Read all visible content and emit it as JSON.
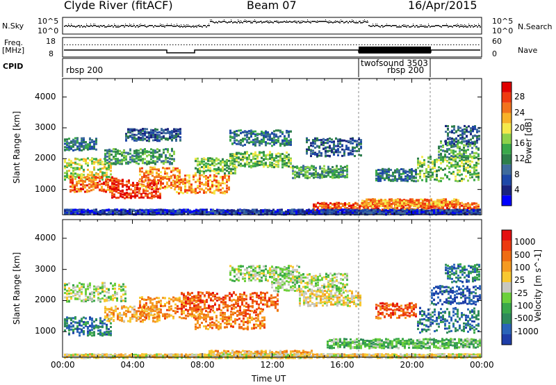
{
  "header": {
    "station": "Clyde River (fitACF)",
    "beam": "Beam 07",
    "date": "16/Apr/2015"
  },
  "panels": {
    "nsky_label": "N.Sky",
    "nsearch_label": "N.Search",
    "nsky_ticks": [
      "10^5",
      "10^0"
    ],
    "nsearch_ticks": [
      "10^5",
      "10^0"
    ],
    "freq_label_1": "Freq.",
    "freq_label_2": "[MHz]",
    "freq_ticks": [
      "18",
      "8"
    ],
    "nave_label": "Nave",
    "nave_ticks": [
      "60",
      "0"
    ],
    "cpid_label": "CPID",
    "cpid_entries": [
      {
        "text": "rbsp 200"
      },
      {
        "text": "twofsound 3503"
      },
      {
        "text": "rbsp 200"
      }
    ]
  },
  "chart_data": [
    {
      "type": "heatmap",
      "title": "Power",
      "ylabel": "Slant Range [km]",
      "xlabel": "Time UT",
      "ylim": [
        180,
        4600
      ],
      "y_ticks": [
        "1000",
        "2000",
        "3000",
        "4000"
      ],
      "x_ticks": [
        "00:00",
        "04:00",
        "08:00",
        "12:00",
        "16:00",
        "20:00",
        "00:00"
      ],
      "colorbar": {
        "label": "Power [dB]",
        "ticks": [
          "28",
          "24",
          "20",
          "16",
          "12",
          "8",
          "4"
        ],
        "colors": [
          "#0000ff",
          "#1a237e",
          "#1e48a8",
          "#3f6c9c",
          "#2e7f4a",
          "#3aa84a",
          "#8ed24a",
          "#f5e94a",
          "#f8b228",
          "#f2731c",
          "#ef3b10",
          "#e00000"
        ]
      }
    },
    {
      "type": "heatmap",
      "title": "Velocity",
      "ylabel": "Slant Range [km]",
      "xlabel": "Time UT",
      "ylim": [
        180,
        4600
      ],
      "y_ticks": [
        "1000",
        "2000",
        "3000",
        "4000"
      ],
      "x_ticks": [
        "00:00",
        "04:00",
        "08:00",
        "12:00",
        "16:00",
        "20:00",
        "00:00"
      ],
      "colorbar": {
        "label": "Velocity [m s^-1]",
        "ticks": [
          "1000",
          "500",
          "100",
          "25",
          "-25",
          "-100",
          "-500",
          "-1000"
        ],
        "colors": [
          "#1e3ea8",
          "#2a64b8",
          "#2e8a5a",
          "#3aa84a",
          "#6cd03c",
          "#c8c8c0",
          "#f8c830",
          "#f59a20",
          "#ef6c12",
          "#ec3a10",
          "#e41010"
        ]
      }
    }
  ]
}
